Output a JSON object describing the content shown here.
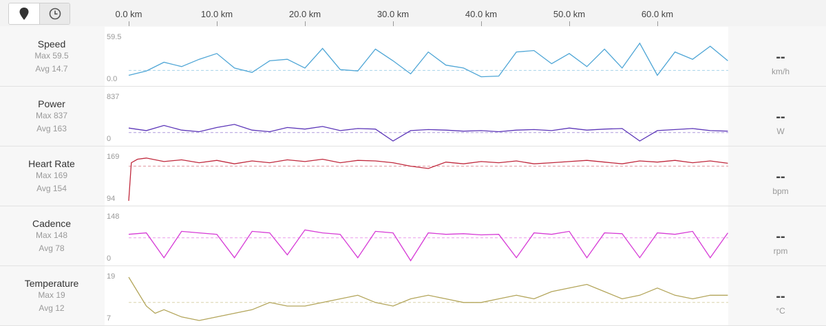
{
  "toolbar": {
    "map_toggle_icon": "map-pin-icon",
    "time_toggle_icon": "clock-icon"
  },
  "axis": {
    "labels": [
      "0.0 km",
      "10.0 km",
      "20.0 km",
      "30.0 km",
      "40.0 km",
      "50.0 km",
      "60.0 km"
    ],
    "ticks_km": [
      0,
      10,
      20,
      30,
      40,
      50,
      60
    ],
    "max_km": 68
  },
  "chart_data": [
    {
      "type": "line",
      "title": "Speed",
      "max_label": "Max 59.5",
      "avg_label": "Avg 14.7",
      "value": "--",
      "unit": "km/h",
      "ymax_label": "59.5",
      "ymin_label": "0.0",
      "ylim": [
        0,
        59.5
      ],
      "avg": 14.7,
      "color": "#4fa6d6",
      "x": [
        0,
        2,
        4,
        6,
        8,
        10,
        12,
        14,
        16,
        18,
        20,
        22,
        24,
        26,
        28,
        30,
        32,
        34,
        36,
        38,
        40,
        42,
        44,
        46,
        48,
        50,
        52,
        54,
        56,
        58,
        60,
        62,
        64,
        66,
        68
      ],
      "y": [
        8,
        14,
        26,
        20,
        30,
        38,
        18,
        12,
        28,
        30,
        18,
        45,
        16,
        14,
        44,
        28,
        10,
        40,
        22,
        18,
        6,
        7,
        40,
        42,
        24,
        38,
        20,
        44,
        18,
        52,
        8,
        40,
        30,
        48,
        28
      ]
    },
    {
      "type": "line",
      "title": "Power",
      "max_label": "Max 837",
      "avg_label": "Avg 163",
      "value": "--",
      "unit": "W",
      "ymax_label": "837",
      "ymin_label": "0",
      "ylim": [
        0,
        837
      ],
      "avg": 163,
      "color": "#5b35b8",
      "x": [
        0,
        2,
        4,
        6,
        8,
        10,
        12,
        14,
        16,
        18,
        20,
        22,
        24,
        26,
        28,
        30,
        32,
        34,
        36,
        38,
        40,
        42,
        44,
        46,
        48,
        50,
        52,
        54,
        56,
        58,
        60,
        62,
        64,
        66,
        68
      ],
      "y": [
        250,
        200,
        300,
        210,
        180,
        260,
        320,
        210,
        180,
        260,
        230,
        280,
        200,
        240,
        230,
        0,
        200,
        220,
        210,
        190,
        200,
        180,
        210,
        220,
        200,
        250,
        210,
        230,
        240,
        0,
        200,
        220,
        240,
        200,
        190
      ]
    },
    {
      "type": "line",
      "title": "Heart Rate",
      "max_label": "Max 169",
      "avg_label": "Avg 154",
      "value": "--",
      "unit": "bpm",
      "ymax_label": "169",
      "ymin_label": "94",
      "ylim": [
        94,
        169
      ],
      "avg": 154,
      "color": "#c0283c",
      "x": [
        0,
        0.3,
        1,
        2,
        4,
        6,
        8,
        10,
        12,
        14,
        16,
        18,
        20,
        22,
        24,
        26,
        28,
        30,
        32,
        34,
        36,
        38,
        40,
        42,
        44,
        46,
        48,
        50,
        52,
        54,
        56,
        58,
        60,
        62,
        64,
        66,
        68
      ],
      "y": [
        94,
        160,
        166,
        168,
        162,
        165,
        160,
        164,
        158,
        163,
        160,
        165,
        162,
        166,
        160,
        164,
        163,
        160,
        154,
        150,
        161,
        158,
        162,
        160,
        163,
        158,
        160,
        162,
        164,
        161,
        158,
        163,
        161,
        164,
        160,
        163,
        159
      ]
    },
    {
      "type": "line",
      "title": "Cadence",
      "max_label": "Max 148",
      "avg_label": "Avg 78",
      "value": "--",
      "unit": "rpm",
      "ymax_label": "148",
      "ymin_label": "0",
      "ylim": [
        0,
        148
      ],
      "avg": 78,
      "color": "#d63ad6",
      "x": [
        0,
        2,
        4,
        6,
        8,
        10,
        12,
        14,
        16,
        18,
        20,
        22,
        24,
        26,
        28,
        30,
        32,
        34,
        36,
        38,
        40,
        42,
        44,
        46,
        48,
        50,
        52,
        54,
        56,
        58,
        60,
        62,
        64,
        66,
        68
      ],
      "y": [
        90,
        95,
        10,
        100,
        95,
        90,
        10,
        100,
        95,
        20,
        105,
        95,
        90,
        10,
        100,
        95,
        0,
        95,
        90,
        92,
        88,
        90,
        10,
        95,
        90,
        100,
        10,
        95,
        92,
        10,
        95,
        90,
        100,
        10,
        95
      ]
    },
    {
      "type": "line",
      "title": "Temperature",
      "max_label": "Max 19",
      "avg_label": "Avg 12",
      "value": "--",
      "unit": "°C",
      "ymax_label": "19",
      "ymin_label": "7",
      "ylim": [
        7,
        19
      ],
      "avg": 12,
      "color": "#b3a55a",
      "x": [
        0,
        1,
        2,
        3,
        4,
        6,
        8,
        10,
        12,
        14,
        16,
        18,
        20,
        22,
        24,
        26,
        28,
        30,
        32,
        34,
        36,
        38,
        40,
        42,
        44,
        46,
        48,
        50,
        52,
        54,
        56,
        58,
        60,
        62,
        64,
        66,
        68
      ],
      "y": [
        19,
        15,
        11,
        9,
        10,
        8,
        7,
        8,
        9,
        10,
        12,
        11,
        11,
        12,
        13,
        14,
        12,
        11,
        13,
        14,
        13,
        12,
        12,
        13,
        14,
        13,
        15,
        16,
        17,
        15,
        13,
        14,
        16,
        14,
        13,
        14,
        14
      ]
    }
  ]
}
